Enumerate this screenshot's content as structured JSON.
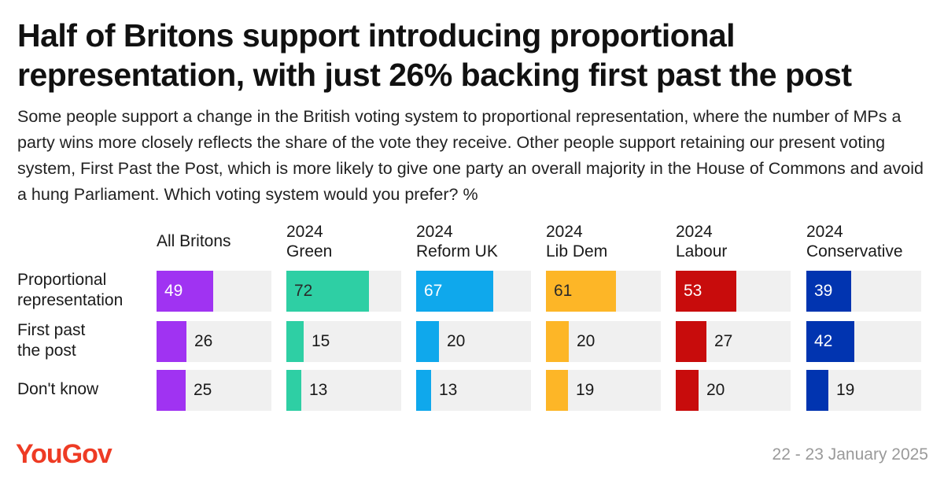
{
  "chart_data": {
    "type": "bar",
    "title": "Half of Britons support introducing proportional representation, with just 26% backing first past the post",
    "subtitle": "Some people support a change in the British voting system to proportional representation, where the number of MPs a party wins more closely reflects the share of the vote they receive. Other people support retaining our present voting system, First Past the Post, which is more likely to give one party an overall majority in the House of Commons and avoid a hung Parliament. Which voting system would you prefer? %",
    "categories": [
      "Proportional\nrepresentation",
      "First past\nthe post",
      "Don't know"
    ],
    "series": [
      {
        "name": "All Britons",
        "color": "#a033f2",
        "values": [
          49,
          26,
          25
        ]
      },
      {
        "name": "2024\nGreen",
        "color": "#2ecfa4",
        "values": [
          72,
          15,
          13
        ]
      },
      {
        "name": "2024\nReform UK",
        "color": "#0fa8ec",
        "values": [
          67,
          20,
          13
        ]
      },
      {
        "name": "2024\nLib Dem",
        "color": "#fdb627",
        "values": [
          61,
          20,
          19
        ]
      },
      {
        "name": "2024\nLabour",
        "color": "#c80c0c",
        "values": [
          53,
          27,
          20
        ]
      },
      {
        "name": "2024\nConservative",
        "color": "#0134b0",
        "values": [
          39,
          42,
          19
        ]
      }
    ],
    "xlim": [
      0,
      100
    ]
  },
  "footer": {
    "logo": "YouGov",
    "date": "22 - 23 January 2025"
  }
}
